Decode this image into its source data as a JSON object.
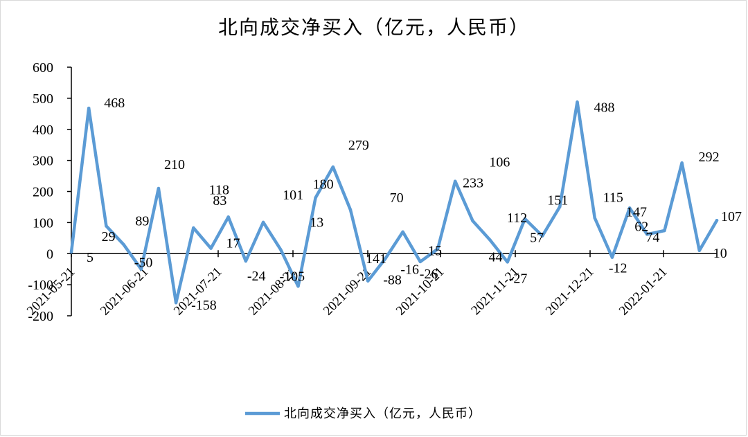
{
  "chart_data": {
    "type": "line",
    "title": "北向成交净买入（亿元，人民币）",
    "xlabel": "",
    "ylabel": "",
    "ylim": [
      -200,
      600
    ],
    "yticks": [
      600,
      500,
      400,
      300,
      200,
      100,
      0,
      -100,
      -200
    ],
    "xtick_labels": [
      "2021-05-21",
      "2021-06-21",
      "2021-07-21",
      "2021-08-21",
      "2021-09-21",
      "2021-10-21",
      "2021-11-21",
      "2021-12-21",
      "2022-01-21"
    ],
    "grid": false,
    "legend_position": "bottom",
    "series": [
      {
        "name": "北向成交净买入（亿元，人民币）",
        "color": "#5B9BD5",
        "values": [
          5,
          468,
          89,
          29,
          -50,
          210,
          -158,
          83,
          17,
          118,
          -24,
          101,
          13,
          -105,
          180,
          279,
          141,
          -88,
          -16,
          70,
          -26,
          15,
          233,
          106,
          44,
          -27,
          112,
          57,
          151,
          488,
          115,
          -12,
          147,
          62,
          74,
          292,
          10,
          107
        ],
        "labels": [
          "5",
          "468",
          "89",
          "29",
          "-50",
          "210",
          "-158",
          "83",
          "17",
          "118",
          "-24",
          "101",
          "13",
          "-105",
          "180",
          "279",
          "141",
          "-88",
          "-16",
          "70",
          "-26",
          "15",
          "233",
          "106",
          "44",
          "-27",
          "112",
          "57",
          "151",
          "488",
          "115",
          "-12",
          "147",
          "62",
          "74",
          "292",
          "10",
          "107"
        ]
      }
    ]
  }
}
